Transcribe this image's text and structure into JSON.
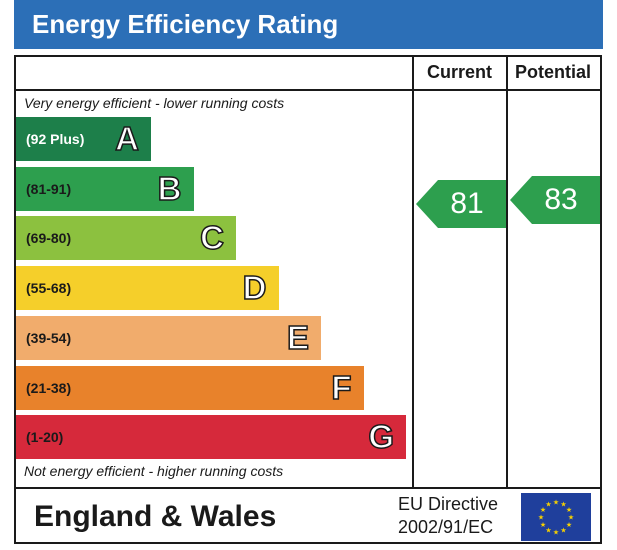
{
  "header": {
    "title": "Energy Efficiency Rating"
  },
  "columns": {
    "current": "Current",
    "potential": "Potential"
  },
  "notes": {
    "top": "Very energy efficient - lower running costs",
    "bottom": "Not energy efficient - higher running costs"
  },
  "chart_data": {
    "type": "bar",
    "categories": [
      "A",
      "B",
      "C",
      "D",
      "E",
      "F",
      "G"
    ],
    "ranges": [
      "(92 Plus)",
      "(81-91)",
      "(69-80)",
      "(55-68)",
      "(39-54)",
      "(21-38)",
      "(1-20)"
    ],
    "colors": [
      "#1d7f4a",
      "#2d9f4e",
      "#8cc13f",
      "#f5cf2a",
      "#f1ac6c",
      "#e8822b",
      "#d6293b"
    ],
    "current": {
      "label": "Current",
      "value": 81,
      "band": "B"
    },
    "potential": {
      "label": "Potential",
      "value": 83,
      "band": "B"
    },
    "indicator_color": "#2d9f4e"
  },
  "footer": {
    "country": "England & Wales",
    "directive_line1": "EU Directive",
    "directive_line2": "2002/91/EC"
  },
  "colors": {
    "header": "#2c6fb7",
    "eu_flag": "#1f3f9c",
    "eu_stars": "#f6d100"
  }
}
